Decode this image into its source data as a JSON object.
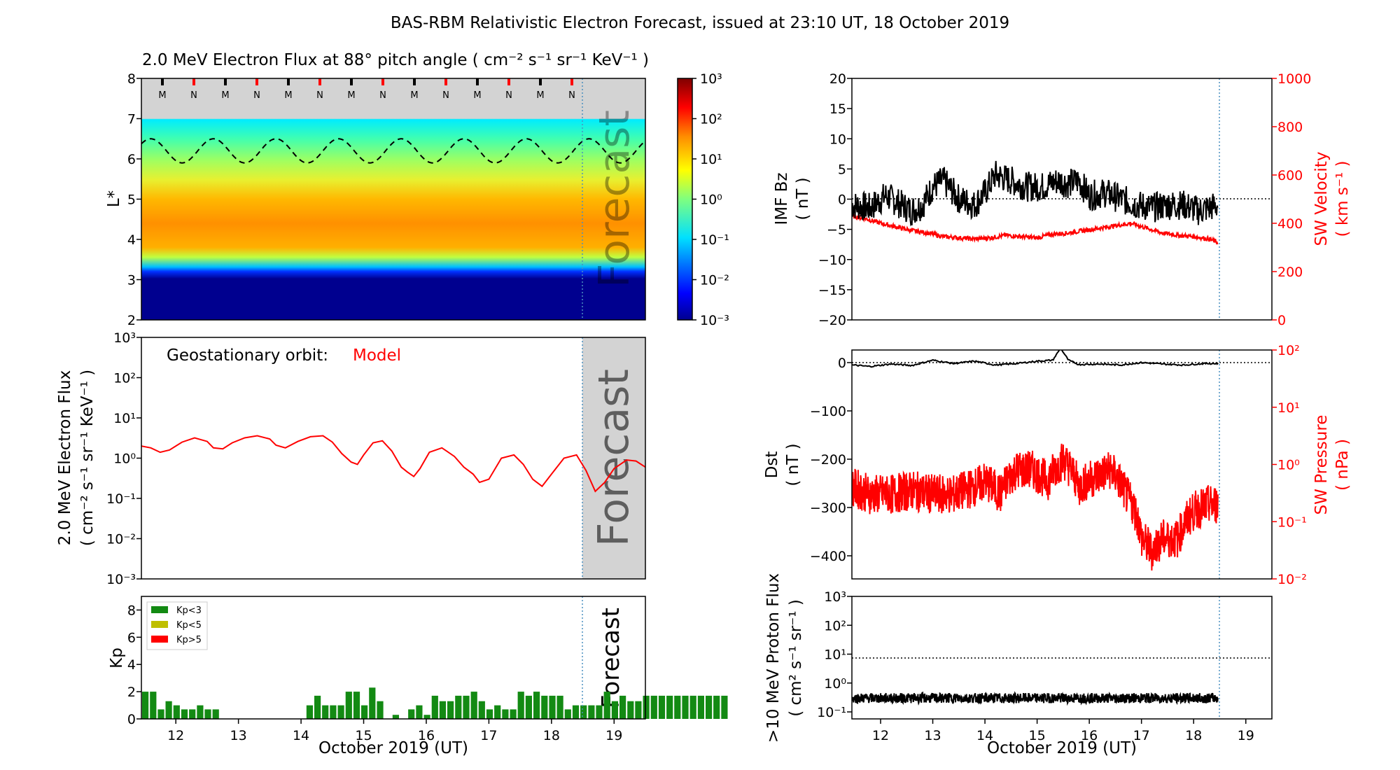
{
  "title": "BAS-RBM Relativistic Electron Forecast, issued at 23:10 UT, 18 October 2019",
  "colors": {
    "model": "#ff0000",
    "observed": "#000000",
    "forecast_bg": "#d3d3d3",
    "kp_low": "#138a13",
    "kp_mid": "#bfbf00",
    "kp_high": "#ff0000"
  },
  "common_x": {
    "xlabel": "October 2019 (UT)",
    "ticks": [
      "12",
      "13",
      "14",
      "15",
      "16",
      "17",
      "18",
      "19"
    ],
    "xlim_days": [
      11.45,
      19.5
    ],
    "forecast_start": 18.47
  },
  "panels": {
    "flux_map": {
      "title": "2.0 MeV Electron Flux at 88° pitch angle ( cm⁻² s⁻¹ sr⁻¹ KeV⁻¹ )",
      "ylabel": "L*",
      "yticks": [
        "2",
        "3",
        "4",
        "5",
        "6",
        "7",
        "8"
      ],
      "colorbar_ticks": [
        "10³",
        "10²",
        "10¹",
        "10⁰",
        "10⁻¹",
        "10⁻²",
        "10⁻³"
      ],
      "watermark": "Forecast",
      "mn_markers": [
        "M",
        "N",
        "M",
        "N",
        "M",
        "N",
        "M",
        "N",
        "M",
        "N",
        "M",
        "N",
        "M",
        "N"
      ]
    },
    "geo_flux": {
      "annotation_label": "Geostationary orbit:",
      "annotation_model": "Model",
      "ylabel1": "2.0 MeV Electron Flux",
      "ylabel2": "( cm⁻² s⁻¹ sr⁻¹ KeV⁻¹ )",
      "yticks": [
        "10³",
        "10²",
        "10¹",
        "10⁰",
        "10⁻¹",
        "10⁻²",
        "10⁻³"
      ],
      "watermark": "Forecast"
    },
    "kp": {
      "ylabel": "Kp",
      "yticks": [
        "0",
        "2",
        "4",
        "6",
        "8"
      ],
      "legend": [
        "Kp<3",
        "Kp<5",
        "Kp>5"
      ],
      "watermark": "Forecast"
    },
    "imf": {
      "ylabel1": "IMF Bz",
      "ylabel2": "( nT )",
      "yticks": [
        "20",
        "15",
        "10",
        "5",
        "0",
        "−5",
        "−10",
        "−15",
        "−20"
      ],
      "ylabel_right1": "SW Velocity",
      "ylabel_right2": "( km s⁻¹ )",
      "yticks_right": [
        "1000",
        "800",
        "600",
        "400",
        "200",
        "0"
      ]
    },
    "dst": {
      "ylabel1": "Dst",
      "ylabel2": "( nT )",
      "yticks": [
        "0",
        "−100",
        "−200",
        "−300",
        "−400"
      ],
      "ylabel_right1": "SW Pressure",
      "ylabel_right2": "( nPa )",
      "yticks_right": [
        "10²",
        "10¹",
        "10⁰",
        "10⁻¹",
        "10⁻²"
      ]
    },
    "proton": {
      "ylabel1": ">10 MeV Proton Flux",
      "ylabel2": "( cm² s⁻¹ sr⁻¹ )",
      "yticks": [
        "10³",
        "10²",
        "10¹",
        "10⁰",
        "10⁻¹"
      ]
    }
  },
  "chart_data": [
    {
      "type": "heatmap",
      "title": "2.0 MeV Electron Flux at 88° pitch angle ( cm⁻² s⁻¹ sr⁻¹ KeV⁻¹ )",
      "ylabel": "L*",
      "ylim": [
        2,
        8
      ],
      "clim_log10": [
        -3,
        3
      ],
      "profile_L_vs_log10flux": [
        [
          2,
          -3
        ],
        [
          3,
          -3
        ],
        [
          3.1,
          -2.5
        ],
        [
          3.3,
          -1
        ],
        [
          3.6,
          0.8
        ],
        [
          4,
          1.6
        ],
        [
          4.3,
          1.8
        ],
        [
          4.6,
          1.6
        ],
        [
          5,
          1.2
        ],
        [
          5.5,
          0.6
        ],
        [
          6,
          0.1
        ],
        [
          6.5,
          -0.3
        ],
        [
          7,
          -0.7
        ]
      ],
      "dashed_boundary_L": {
        "mean": 6.2,
        "amplitude": 0.3,
        "period_days": 1
      }
    },
    {
      "type": "line",
      "name": "Model",
      "ylabel": "2.0 MeV Electron Flux",
      "yscale": "log",
      "ylim": [
        0.001,
        1000
      ],
      "x": [
        11.45,
        11.6,
        11.75,
        11.9,
        12.1,
        12.3,
        12.5,
        12.6,
        12.75,
        12.9,
        13.1,
        13.3,
        13.5,
        13.6,
        13.75,
        13.95,
        14.15,
        14.35,
        14.5,
        14.65,
        14.8,
        14.9,
        15.0,
        15.15,
        15.3,
        15.45,
        15.6,
        15.7,
        15.8,
        15.9,
        16.05,
        16.25,
        16.45,
        16.6,
        16.75,
        16.85,
        17.0,
        17.2,
        17.4,
        17.55,
        17.7,
        17.85,
        18.0,
        18.2,
        18.4,
        18.55,
        18.7,
        18.85,
        19.0,
        19.2,
        19.35,
        19.5
      ],
      "y": [
        2.0,
        1.8,
        1.4,
        1.6,
        2.5,
        3.2,
        2.6,
        1.8,
        1.7,
        2.4,
        3.2,
        3.6,
        3.0,
        2.1,
        1.8,
        2.6,
        3.4,
        3.6,
        2.5,
        1.3,
        0.8,
        0.7,
        1.2,
        2.4,
        2.7,
        1.5,
        0.6,
        0.45,
        0.35,
        0.55,
        1.4,
        1.8,
        1.1,
        0.6,
        0.4,
        0.25,
        0.3,
        1.0,
        1.2,
        0.7,
        0.3,
        0.2,
        0.4,
        1.0,
        1.2,
        0.5,
        0.15,
        0.25,
        0.55,
        0.9,
        0.85,
        0.6
      ]
    },
    {
      "type": "bar",
      "name": "Kp",
      "ylim": [
        0,
        9
      ],
      "x_start": 11.45,
      "bin_days": 0.125,
      "values": [
        2,
        2,
        0.7,
        1.3,
        1,
        0.7,
        0.7,
        1,
        0.7,
        0.7,
        0,
        0,
        0,
        0,
        0,
        0,
        0,
        0,
        0,
        0,
        0,
        1,
        1.7,
        1,
        1,
        1,
        2,
        2,
        1,
        2.3,
        1.3,
        0,
        0.3,
        0,
        0.7,
        1,
        0.3,
        1.7,
        1.3,
        1.3,
        1.7,
        1.7,
        2,
        1.3,
        0.7,
        1,
        0.7,
        0.7,
        2,
        1.7,
        2,
        1.7,
        1.7,
        1.7,
        0.7,
        1,
        1,
        1,
        1,
        2,
        1.3,
        1.7,
        1.3,
        1.3,
        1.7,
        1.7,
        1.7,
        1.7,
        1.7,
        1.7,
        1.7,
        1.7,
        1.7,
        1.7,
        1.7
      ]
    },
    {
      "type": "line",
      "series": [
        {
          "name": "IMF Bz",
          "axis": "left",
          "ylim": [
            -20,
            20
          ],
          "x": [
            11.45,
            11.8,
            12.1,
            12.4,
            12.6,
            12.8,
            13.0,
            13.2,
            13.5,
            13.8,
            14.0,
            14.2,
            14.5,
            14.8,
            15.1,
            15.4,
            15.6,
            15.8,
            16.0,
            16.3,
            16.6,
            16.9,
            17.2,
            17.5,
            17.8,
            18.1,
            18.3,
            18.47
          ],
          "y": [
            -1,
            -1.5,
            0.5,
            -1,
            -2,
            -1,
            2,
            3,
            0,
            -1,
            1,
            4,
            3,
            2,
            2,
            3,
            2.5,
            3,
            0.5,
            1,
            0,
            -1,
            -1.5,
            -1,
            -1,
            -2,
            -1.5,
            -1
          ]
        },
        {
          "name": "SW Velocity",
          "axis": "right",
          "ylim": [
            0,
            1000
          ],
          "x": [
            11.45,
            11.7,
            12.0,
            12.3,
            12.6,
            12.9,
            13.2,
            13.5,
            13.8,
            14.1,
            14.4,
            14.7,
            15.0,
            15.3,
            15.6,
            15.9,
            16.2,
            16.5,
            16.8,
            17.1,
            17.4,
            17.7,
            18.0,
            18.3,
            18.47
          ],
          "y": [
            430,
            420,
            400,
            385,
            370,
            360,
            345,
            340,
            335,
            340,
            350,
            345,
            340,
            355,
            360,
            370,
            380,
            390,
            400,
            380,
            360,
            350,
            345,
            335,
            320
          ]
        }
      ]
    },
    {
      "type": "line",
      "series": [
        {
          "name": "Dst",
          "axis": "left",
          "ylim": [
            -460,
            50
          ],
          "x": [
            11.45,
            11.8,
            12.2,
            12.6,
            13.0,
            13.4,
            13.8,
            14.2,
            14.6,
            15.0,
            15.3,
            15.45,
            15.6,
            15.8,
            16.2,
            16.6,
            17.0,
            17.4,
            17.8,
            18.2,
            18.47
          ],
          "y": [
            -5,
            -8,
            -3,
            -6,
            5,
            -2,
            3,
            -5,
            -2,
            3,
            5,
            30,
            5,
            -4,
            -3,
            -5,
            0,
            -3,
            -5,
            -2,
            -2
          ]
        },
        {
          "name": "SW Pressure",
          "axis": "right",
          "yscale": "log",
          "ylim": [
            0.01,
            100
          ],
          "x": [
            11.45,
            11.8,
            12.2,
            12.6,
            13.0,
            13.4,
            13.8,
            14.0,
            14.3,
            14.6,
            14.9,
            15.2,
            15.5,
            15.8,
            16.1,
            16.4,
            16.7,
            17.0,
            17.2,
            17.4,
            17.7,
            18.0,
            18.3,
            18.47
          ],
          "y": [
            0.4,
            0.3,
            0.3,
            0.35,
            0.3,
            0.3,
            0.4,
            0.5,
            0.3,
            0.8,
            0.8,
            0.5,
            1.2,
            0.4,
            0.6,
            0.8,
            0.3,
            0.05,
            0.03,
            0.05,
            0.05,
            0.15,
            0.2,
            0.2
          ]
        }
      ]
    },
    {
      "type": "line",
      "name": ">10 MeV Proton Flux",
      "yscale": "log",
      "ylim": [
        0.1,
        1000
      ],
      "x": [
        11.45,
        18.47
      ],
      "y": [
        0.3,
        0.3
      ],
      "threshold": 10
    }
  ]
}
